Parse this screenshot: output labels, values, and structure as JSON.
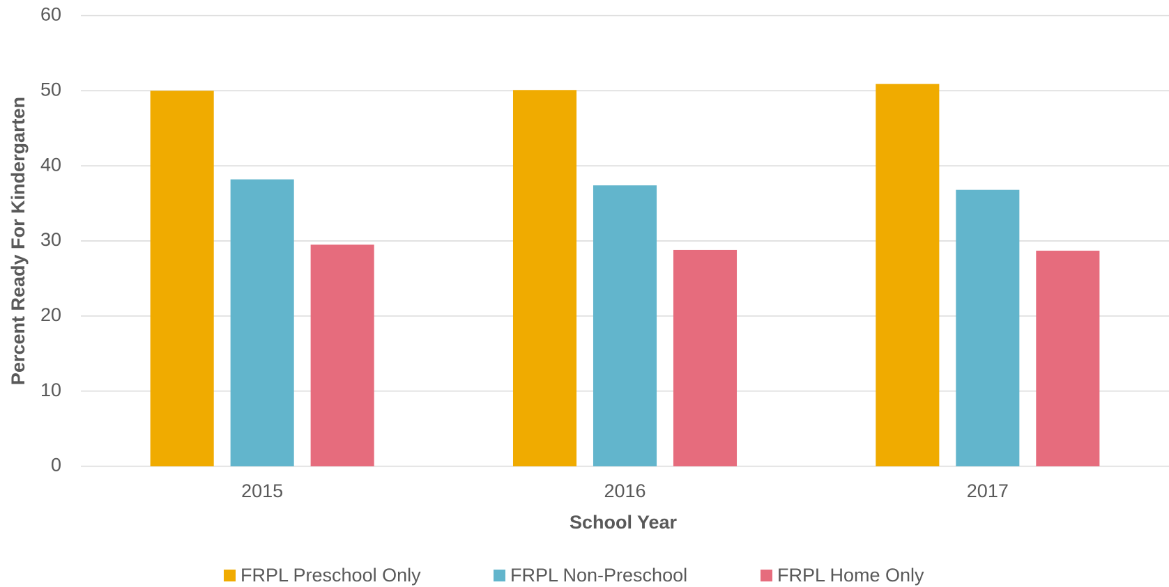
{
  "chart_data": {
    "type": "bar",
    "categories": [
      "2015",
      "2016",
      "2017"
    ],
    "series": [
      {
        "name": "FRPL Preschool Only",
        "color": "#f0ab00",
        "values": [
          50.0,
          50.1,
          50.9
        ]
      },
      {
        "name": "FRPL Non-Preschool",
        "color": "#62b5cc",
        "values": [
          38.2,
          37.4,
          36.8
        ]
      },
      {
        "name": "FRPL Home Only",
        "color": "#e66c7d",
        "values": [
          29.5,
          28.8,
          28.7
        ]
      }
    ],
    "x_label": "School Year",
    "y_label": "Percent Ready For Kindergarten",
    "ylim": [
      0,
      60
    ],
    "yticks": [
      0,
      10,
      20,
      30,
      40,
      50,
      60
    ],
    "grid": true,
    "legend": "bottom"
  }
}
